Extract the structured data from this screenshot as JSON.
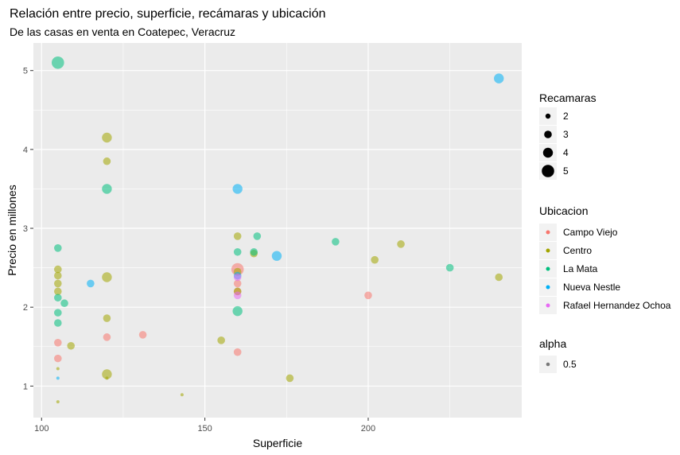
{
  "chart_data": {
    "type": "scatter",
    "title": "Relación entre precio, superficie, recámaras y ubicación",
    "subtitle": "De las casas en venta en Coatepec, Veracruz",
    "xlabel": "Superficie",
    "ylabel": "Precio en millones",
    "xlim": [
      97.5,
      247
    ],
    "ylim": [
      0.6,
      5.35
    ],
    "x_ticks": [
      100,
      150,
      200
    ],
    "y_ticks": [
      1,
      2,
      3,
      4,
      5
    ],
    "grid": true,
    "panel_color": "#ebebeb",
    "legend_position": "right",
    "size_legend": {
      "title": "Recamaras",
      "levels": [
        {
          "label": "2",
          "value": 2
        },
        {
          "label": "3",
          "value": 3
        },
        {
          "label": "4",
          "value": 4
        },
        {
          "label": "5",
          "value": 5
        }
      ]
    },
    "color_legend": {
      "title": "Ubicacion",
      "levels": [
        {
          "label": "Campo Viejo",
          "color": "#F8766D"
        },
        {
          "label": "Centro",
          "color": "#A3A500"
        },
        {
          "label": "La Mata",
          "color": "#00BF7D"
        },
        {
          "label": "Nueva Nestle",
          "color": "#00B0F6"
        },
        {
          "label": "Rafael Hernandez Ochoa",
          "color": "#E76BF3"
        }
      ]
    },
    "alpha_legend": {
      "title": "alpha",
      "levels": [
        {
          "label": "0.5",
          "value": 0.5
        }
      ]
    },
    "series": [
      {
        "name": "Campo Viejo",
        "points": [
          {
            "x": 105,
            "y": 1.55,
            "rec": 3
          },
          {
            "x": 105,
            "y": 1.35,
            "rec": 3
          },
          {
            "x": 120,
            "y": 1.62,
            "rec": 3
          },
          {
            "x": 131,
            "y": 1.65,
            "rec": 3
          },
          {
            "x": 160,
            "y": 2.48,
            "rec": 5
          },
          {
            "x": 160,
            "y": 2.3,
            "rec": 3
          },
          {
            "x": 160,
            "y": 2.2,
            "rec": 3
          },
          {
            "x": 160,
            "y": 1.43,
            "rec": 3
          },
          {
            "x": 200,
            "y": 2.15,
            "rec": 3
          }
        ]
      },
      {
        "name": "Centro",
        "points": [
          {
            "x": 105,
            "y": 2.48,
            "rec": 3
          },
          {
            "x": 105,
            "y": 2.4,
            "rec": 3
          },
          {
            "x": 105,
            "y": 2.3,
            "rec": 3
          },
          {
            "x": 105,
            "y": 2.2,
            "rec": 3
          },
          {
            "x": 105,
            "y": 1.22,
            "rec": 1
          },
          {
            "x": 105,
            "y": 0.8,
            "rec": 1
          },
          {
            "x": 109,
            "y": 1.51,
            "rec": 3
          },
          {
            "x": 120,
            "y": 4.15,
            "rec": 4
          },
          {
            "x": 120,
            "y": 3.85,
            "rec": 3
          },
          {
            "x": 120,
            "y": 2.38,
            "rec": 4
          },
          {
            "x": 120,
            "y": 1.86,
            "rec": 3
          },
          {
            "x": 120,
            "y": 1.15,
            "rec": 4
          },
          {
            "x": 120,
            "y": 1.1,
            "rec": 1
          },
          {
            "x": 143,
            "y": 0.89,
            "rec": 1
          },
          {
            "x": 155,
            "y": 1.58,
            "rec": 3
          },
          {
            "x": 160,
            "y": 2.9,
            "rec": 3
          },
          {
            "x": 160,
            "y": 2.45,
            "rec": 3
          },
          {
            "x": 160,
            "y": 2.2,
            "rec": 3
          },
          {
            "x": 165,
            "y": 2.68,
            "rec": 3
          },
          {
            "x": 176,
            "y": 1.1,
            "rec": 3
          },
          {
            "x": 202,
            "y": 2.6,
            "rec": 3
          },
          {
            "x": 210,
            "y": 2.8,
            "rec": 3
          },
          {
            "x": 240,
            "y": 2.38,
            "rec": 3
          }
        ]
      },
      {
        "name": "La Mata",
        "points": [
          {
            "x": 105,
            "y": 5.1,
            "rec": 5
          },
          {
            "x": 105,
            "y": 2.75,
            "rec": 3
          },
          {
            "x": 105,
            "y": 2.12,
            "rec": 3
          },
          {
            "x": 105,
            "y": 1.93,
            "rec": 3
          },
          {
            "x": 105,
            "y": 1.8,
            "rec": 3
          },
          {
            "x": 107,
            "y": 2.05,
            "rec": 3
          },
          {
            "x": 120,
            "y": 3.5,
            "rec": 4
          },
          {
            "x": 160,
            "y": 2.7,
            "rec": 3
          },
          {
            "x": 160,
            "y": 1.95,
            "rec": 4
          },
          {
            "x": 165,
            "y": 2.7,
            "rec": 3
          },
          {
            "x": 166,
            "y": 2.9,
            "rec": 3
          },
          {
            "x": 190,
            "y": 2.83,
            "rec": 3
          },
          {
            "x": 225,
            "y": 2.5,
            "rec": 3
          }
        ]
      },
      {
        "name": "Nueva Nestle",
        "points": [
          {
            "x": 105,
            "y": 1.1,
            "rec": 1
          },
          {
            "x": 115,
            "y": 2.3,
            "rec": 3
          },
          {
            "x": 160,
            "y": 3.5,
            "rec": 4
          },
          {
            "x": 160,
            "y": 2.4,
            "rec": 3
          },
          {
            "x": 172,
            "y": 2.65,
            "rec": 4
          },
          {
            "x": 240,
            "y": 4.9,
            "rec": 4
          }
        ]
      },
      {
        "name": "Rafael Hernandez Ochoa",
        "points": [
          {
            "x": 160,
            "y": 2.38,
            "rec": 3
          },
          {
            "x": 160,
            "y": 2.15,
            "rec": 3
          }
        ]
      }
    ]
  }
}
